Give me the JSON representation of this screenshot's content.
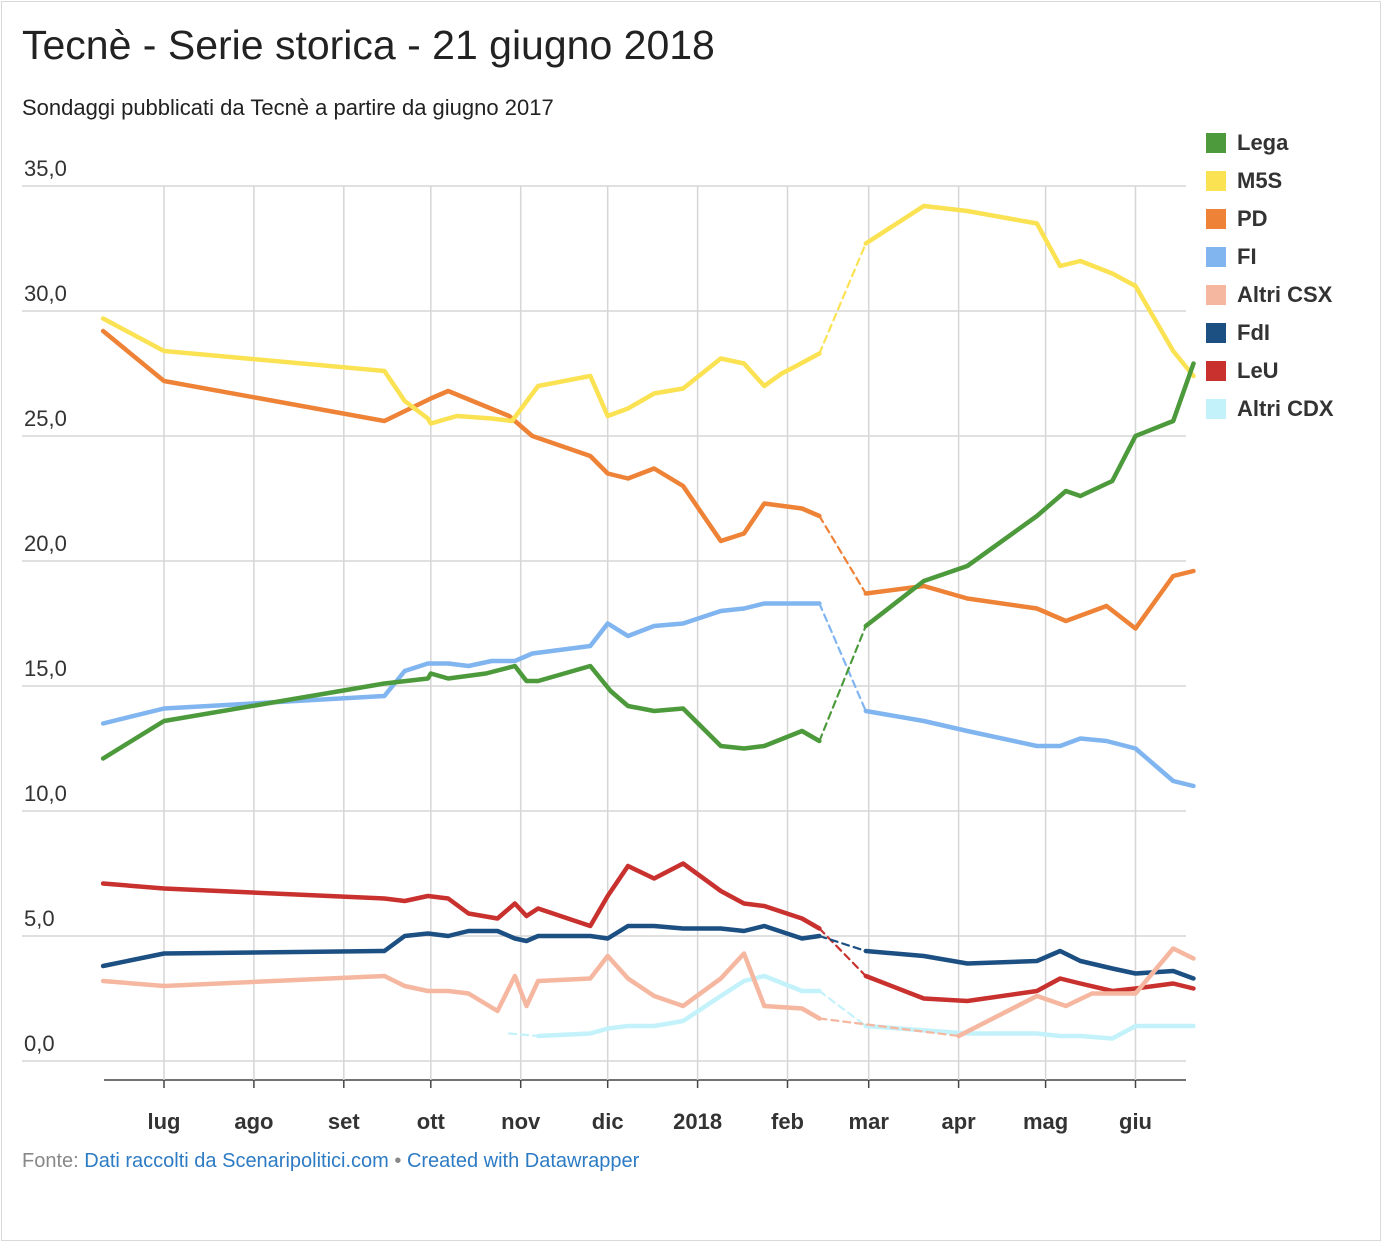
{
  "header": {
    "title": "Tecnè - Serie storica - 21 giugno 2018",
    "subtitle": "Sondaggi pubblicati da Tecnè a partire da giugno 2017"
  },
  "footer": {
    "prefix": "Fonte: ",
    "source_link": "Dati raccolti da Scenaripolitici.com",
    "separator": " • ",
    "credit_link": "Created with Datawrapper"
  },
  "chart_data": {
    "type": "line",
    "title": "Tecnè - Serie storica - 21 giugno 2018",
    "subtitle": "Sondaggi pubblicati da Tecnè a partire da giugno 2017",
    "ylim": [
      0,
      35
    ],
    "y_ticks": [
      "0,0",
      "5,0",
      "10,0",
      "15,0",
      "20,0",
      "25,0",
      "30,0",
      "35,0"
    ],
    "x_ticks": [
      {
        "label": "lug",
        "date": "2017-07-01"
      },
      {
        "label": "ago",
        "date": "2017-08-01"
      },
      {
        "label": "set",
        "date": "2017-09-01"
      },
      {
        "label": "ott",
        "date": "2017-10-01"
      },
      {
        "label": "nov",
        "date": "2017-11-01"
      },
      {
        "label": "dic",
        "date": "2017-12-01"
      },
      {
        "label": "2018",
        "date": "2018-01-01"
      },
      {
        "label": "feb",
        "date": "2018-02-01"
      },
      {
        "label": "mar",
        "date": "2018-03-01"
      },
      {
        "label": "apr",
        "date": "2018-04-01"
      },
      {
        "label": "mag",
        "date": "2018-05-01"
      },
      {
        "label": "giu",
        "date": "2018-06-01"
      }
    ],
    "x_range": [
      "2017-06-01",
      "2018-06-28"
    ],
    "gridlines": true,
    "legend_position": "right",
    "series": [
      {
        "name": "Lega",
        "color": "#4c9a3b",
        "points": [
          [
            "2017-06-10",
            12.1
          ],
          [
            "2017-07-01",
            13.6
          ],
          [
            "2017-09-15",
            15.1
          ],
          [
            "2017-09-30",
            15.3
          ],
          [
            "2017-10-01",
            15.5
          ],
          [
            "2017-10-07",
            15.3
          ],
          [
            "2017-10-20",
            15.5
          ],
          [
            "2017-10-30",
            15.8
          ],
          [
            "2017-11-03",
            15.2
          ],
          [
            "2017-11-07",
            15.2
          ],
          [
            "2017-11-25",
            15.8
          ],
          [
            "2017-12-02",
            14.8
          ],
          [
            "2017-12-08",
            14.2
          ],
          [
            "2017-12-17",
            14.0
          ],
          [
            "2017-12-27",
            14.1
          ],
          [
            "2018-01-09",
            12.6
          ],
          [
            "2018-01-17",
            12.5
          ],
          [
            "2018-01-24",
            12.6
          ],
          [
            "2018-02-06",
            13.2
          ],
          [
            "2018-02-12",
            12.8
          ]
        ],
        "dashed": [
          [
            "2018-02-12",
            12.8
          ],
          [
            "2018-02-28",
            17.4
          ]
        ],
        "after": [
          [
            "2018-02-28",
            17.4
          ],
          [
            "2018-03-20",
            19.2
          ],
          [
            "2018-04-04",
            19.8
          ],
          [
            "2018-04-28",
            21.8
          ],
          [
            "2018-05-08",
            22.8
          ],
          [
            "2018-05-13",
            22.6
          ],
          [
            "2018-05-24",
            23.2
          ],
          [
            "2018-06-01",
            25.0
          ],
          [
            "2018-06-14",
            25.6
          ],
          [
            "2018-06-21",
            27.9
          ]
        ]
      },
      {
        "name": "M5S",
        "color": "#fae253",
        "points": [
          [
            "2017-06-10",
            29.7
          ],
          [
            "2017-07-01",
            28.4
          ],
          [
            "2017-09-15",
            27.6
          ],
          [
            "2017-09-22",
            26.4
          ],
          [
            "2017-09-30",
            25.7
          ],
          [
            "2017-10-01",
            25.5
          ],
          [
            "2017-10-10",
            25.8
          ],
          [
            "2017-10-22",
            25.7
          ],
          [
            "2017-10-29",
            25.6
          ],
          [
            "2017-11-07",
            27.0
          ],
          [
            "2017-11-25",
            27.4
          ],
          [
            "2017-12-01",
            25.8
          ],
          [
            "2017-12-08",
            26.1
          ],
          [
            "2017-12-17",
            26.7
          ],
          [
            "2017-12-27",
            26.9
          ],
          [
            "2018-01-09",
            28.1
          ],
          [
            "2018-01-17",
            27.9
          ],
          [
            "2018-01-24",
            27.0
          ],
          [
            "2018-01-30",
            27.5
          ],
          [
            "2018-02-04",
            27.8
          ],
          [
            "2018-02-12",
            28.3
          ]
        ],
        "dashed": [
          [
            "2018-02-12",
            28.3
          ],
          [
            "2018-02-28",
            32.7
          ]
        ],
        "after": [
          [
            "2018-02-28",
            32.7
          ],
          [
            "2018-03-20",
            34.2
          ],
          [
            "2018-04-04",
            34.0
          ],
          [
            "2018-04-28",
            33.5
          ],
          [
            "2018-05-06",
            31.8
          ],
          [
            "2018-05-13",
            32.0
          ],
          [
            "2018-05-24",
            31.5
          ],
          [
            "2018-06-01",
            31.0
          ],
          [
            "2018-06-14",
            28.4
          ],
          [
            "2018-06-21",
            27.4
          ]
        ]
      },
      {
        "name": "PD",
        "color": "#ee8236",
        "points": [
          [
            "2017-06-10",
            29.2
          ],
          [
            "2017-07-01",
            27.2
          ],
          [
            "2017-09-15",
            25.6
          ],
          [
            "2017-10-01",
            26.5
          ],
          [
            "2017-10-07",
            26.8
          ],
          [
            "2017-10-28",
            25.8
          ],
          [
            "2017-11-05",
            25.0
          ],
          [
            "2017-11-25",
            24.2
          ],
          [
            "2017-12-01",
            23.5
          ],
          [
            "2017-12-08",
            23.3
          ],
          [
            "2017-12-17",
            23.7
          ],
          [
            "2017-12-27",
            23.0
          ],
          [
            "2018-01-09",
            20.8
          ],
          [
            "2018-01-17",
            21.1
          ],
          [
            "2018-01-24",
            22.3
          ],
          [
            "2018-02-06",
            22.1
          ],
          [
            "2018-02-12",
            21.8
          ]
        ],
        "dashed": [
          [
            "2018-02-12",
            21.8
          ],
          [
            "2018-02-28",
            18.7
          ]
        ],
        "after": [
          [
            "2018-02-28",
            18.7
          ],
          [
            "2018-03-20",
            19.0
          ],
          [
            "2018-04-04",
            18.5
          ],
          [
            "2018-04-28",
            18.1
          ],
          [
            "2018-05-08",
            17.6
          ],
          [
            "2018-05-22",
            18.2
          ],
          [
            "2018-06-01",
            17.3
          ],
          [
            "2018-06-14",
            19.4
          ],
          [
            "2018-06-21",
            19.6
          ]
        ]
      },
      {
        "name": "FI",
        "color": "#80b5f0",
        "points": [
          [
            "2017-06-10",
            13.5
          ],
          [
            "2017-07-01",
            14.1
          ],
          [
            "2017-09-15",
            14.6
          ],
          [
            "2017-09-22",
            15.6
          ],
          [
            "2017-09-30",
            15.9
          ],
          [
            "2017-10-07",
            15.9
          ],
          [
            "2017-10-14",
            15.8
          ],
          [
            "2017-10-22",
            16.0
          ],
          [
            "2017-10-30",
            16.0
          ],
          [
            "2017-11-05",
            16.3
          ],
          [
            "2017-11-25",
            16.6
          ],
          [
            "2017-12-01",
            17.5
          ],
          [
            "2017-12-08",
            17.0
          ],
          [
            "2017-12-17",
            17.4
          ],
          [
            "2017-12-27",
            17.5
          ],
          [
            "2018-01-09",
            18.0
          ],
          [
            "2018-01-17",
            18.1
          ],
          [
            "2018-01-24",
            18.3
          ],
          [
            "2018-02-12",
            18.3
          ]
        ],
        "dashed": [
          [
            "2018-02-12",
            18.3
          ],
          [
            "2018-02-28",
            14.0
          ]
        ],
        "after": [
          [
            "2018-02-28",
            14.0
          ],
          [
            "2018-03-20",
            13.6
          ],
          [
            "2018-04-04",
            13.2
          ],
          [
            "2018-04-28",
            12.6
          ],
          [
            "2018-05-06",
            12.6
          ],
          [
            "2018-05-13",
            12.9
          ],
          [
            "2018-05-22",
            12.8
          ],
          [
            "2018-06-01",
            12.5
          ],
          [
            "2018-06-14",
            11.2
          ],
          [
            "2018-06-21",
            11.0
          ]
        ]
      },
      {
        "name": "Altri CSX",
        "color": "#f5b7a0",
        "points": [
          [
            "2017-06-10",
            3.2
          ],
          [
            "2017-07-01",
            3.0
          ],
          [
            "2017-09-15",
            3.4
          ],
          [
            "2017-09-22",
            3.0
          ],
          [
            "2017-09-30",
            2.8
          ],
          [
            "2017-10-07",
            2.8
          ],
          [
            "2017-10-14",
            2.7
          ],
          [
            "2017-10-24",
            2.0
          ],
          [
            "2017-10-30",
            3.4
          ],
          [
            "2017-11-03",
            2.2
          ],
          [
            "2017-11-07",
            3.2
          ],
          [
            "2017-11-25",
            3.3
          ],
          [
            "2017-12-01",
            4.2
          ],
          [
            "2017-12-08",
            3.3
          ],
          [
            "2017-12-17",
            2.6
          ],
          [
            "2017-12-27",
            2.2
          ],
          [
            "2018-01-09",
            3.3
          ],
          [
            "2018-01-17",
            4.3
          ],
          [
            "2018-01-24",
            2.2
          ],
          [
            "2018-02-06",
            2.1
          ],
          [
            "2018-02-12",
            1.7
          ]
        ],
        "dashed": [
          [
            "2018-02-12",
            1.7
          ],
          [
            "2018-04-01",
            1.0
          ]
        ],
        "after": [
          [
            "2018-04-01",
            1.0
          ],
          [
            "2018-04-28",
            2.6
          ],
          [
            "2018-05-08",
            2.2
          ],
          [
            "2018-05-17",
            2.7
          ],
          [
            "2018-06-01",
            2.7
          ],
          [
            "2018-06-14",
            4.5
          ],
          [
            "2018-06-21",
            4.1
          ]
        ]
      },
      {
        "name": "FdI",
        "color": "#1c4f82",
        "points": [
          [
            "2017-06-10",
            3.8
          ],
          [
            "2017-07-01",
            4.3
          ],
          [
            "2017-09-15",
            4.4
          ],
          [
            "2017-09-22",
            5.0
          ],
          [
            "2017-09-30",
            5.1
          ],
          [
            "2017-10-07",
            5.0
          ],
          [
            "2017-10-14",
            5.2
          ],
          [
            "2017-10-24",
            5.2
          ],
          [
            "2017-10-30",
            4.9
          ],
          [
            "2017-11-03",
            4.8
          ],
          [
            "2017-11-07",
            5.0
          ],
          [
            "2017-11-25",
            5.0
          ],
          [
            "2017-12-01",
            4.9
          ],
          [
            "2017-12-08",
            5.4
          ],
          [
            "2017-12-17",
            5.4
          ],
          [
            "2017-12-27",
            5.3
          ],
          [
            "2018-01-09",
            5.3
          ],
          [
            "2018-01-17",
            5.2
          ],
          [
            "2018-01-24",
            5.4
          ],
          [
            "2018-02-06",
            4.9
          ],
          [
            "2018-02-12",
            5.0
          ]
        ],
        "dashed": [
          [
            "2018-02-12",
            5.0
          ],
          [
            "2018-02-28",
            4.4
          ]
        ],
        "after": [
          [
            "2018-02-28",
            4.4
          ],
          [
            "2018-03-20",
            4.2
          ],
          [
            "2018-04-04",
            3.9
          ],
          [
            "2018-04-28",
            4.0
          ],
          [
            "2018-05-06",
            4.4
          ],
          [
            "2018-05-13",
            4.0
          ],
          [
            "2018-05-24",
            3.7
          ],
          [
            "2018-06-01",
            3.5
          ],
          [
            "2018-06-14",
            3.6
          ],
          [
            "2018-06-21",
            3.3
          ]
        ]
      },
      {
        "name": "LeU",
        "color": "#c8312e",
        "points": [
          [
            "2017-06-10",
            7.1
          ],
          [
            "2017-07-01",
            6.9
          ],
          [
            "2017-09-15",
            6.5
          ],
          [
            "2017-09-22",
            6.4
          ],
          [
            "2017-09-30",
            6.6
          ],
          [
            "2017-10-07",
            6.5
          ],
          [
            "2017-10-14",
            5.9
          ],
          [
            "2017-10-24",
            5.7
          ],
          [
            "2017-10-30",
            6.3
          ],
          [
            "2017-11-03",
            5.8
          ],
          [
            "2017-11-07",
            6.1
          ],
          [
            "2017-11-25",
            5.4
          ],
          [
            "2017-12-01",
            6.6
          ],
          [
            "2017-12-08",
            7.8
          ],
          [
            "2017-12-17",
            7.3
          ],
          [
            "2017-12-27",
            7.9
          ],
          [
            "2018-01-09",
            6.8
          ],
          [
            "2018-01-17",
            6.3
          ],
          [
            "2018-01-24",
            6.2
          ],
          [
            "2018-02-06",
            5.7
          ],
          [
            "2018-02-12",
            5.3
          ]
        ],
        "dashed": [
          [
            "2018-02-12",
            5.3
          ],
          [
            "2018-02-28",
            3.4
          ]
        ],
        "after": [
          [
            "2018-02-28",
            3.4
          ],
          [
            "2018-03-20",
            2.5
          ],
          [
            "2018-04-04",
            2.4
          ],
          [
            "2018-04-28",
            2.8
          ],
          [
            "2018-05-06",
            3.3
          ],
          [
            "2018-05-13",
            3.1
          ],
          [
            "2018-05-24",
            2.8
          ],
          [
            "2018-06-01",
            2.9
          ],
          [
            "2018-06-14",
            3.1
          ],
          [
            "2018-06-21",
            2.9
          ]
        ]
      },
      {
        "name": "Altri CDX",
        "color": "#c3f2fb",
        "points": [
          [
            "2017-11-07",
            1.0
          ],
          [
            "2017-11-25",
            1.1
          ],
          [
            "2017-12-01",
            1.3
          ],
          [
            "2017-12-08",
            1.4
          ],
          [
            "2017-12-17",
            1.4
          ],
          [
            "2017-12-27",
            1.6
          ],
          [
            "2018-01-09",
            2.6
          ],
          [
            "2018-01-17",
            3.2
          ],
          [
            "2018-01-24",
            3.4
          ],
          [
            "2018-02-06",
            2.8
          ],
          [
            "2018-02-12",
            2.8
          ]
        ],
        "dashed_pre": [
          [
            "2017-10-28",
            1.1
          ],
          [
            "2017-11-07",
            1.0
          ]
        ],
        "dashed": [
          [
            "2018-02-12",
            2.8
          ],
          [
            "2018-02-28",
            1.4
          ]
        ],
        "after": [
          [
            "2018-02-28",
            1.4
          ],
          [
            "2018-04-04",
            1.1
          ],
          [
            "2018-04-28",
            1.1
          ],
          [
            "2018-05-06",
            1.0
          ],
          [
            "2018-05-13",
            1.0
          ],
          [
            "2018-05-24",
            0.9
          ],
          [
            "2018-06-01",
            1.4
          ],
          [
            "2018-06-14",
            1.4
          ],
          [
            "2018-06-21",
            1.4
          ]
        ]
      }
    ]
  }
}
